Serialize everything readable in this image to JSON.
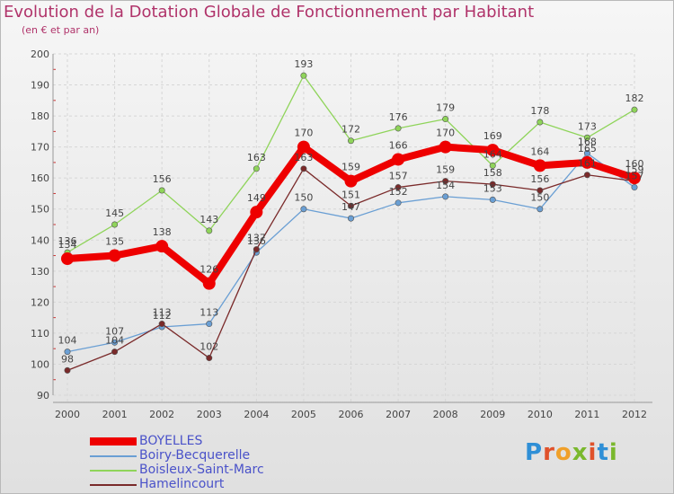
{
  "title": "Evolution de la Dotation Globale de Fonctionnement par Habitant",
  "subtitle": "(en € et par an)",
  "logo": {
    "text": "Proxiti",
    "letter_colors": [
      "#2f8fd6",
      "#e0522b",
      "#f0a02a",
      "#7ab82d",
      "#e0522b",
      "#2f8fd6",
      "#7ab82d"
    ]
  },
  "chart_data": {
    "type": "line",
    "x": [
      "2000",
      "2001",
      "2002",
      "2003",
      "2004",
      "2005",
      "2006",
      "2007",
      "2008",
      "2009",
      "2010",
      "2011",
      "2012"
    ],
    "ylim": [
      90,
      200
    ],
    "yticks": [
      "90",
      "100",
      "110",
      "120",
      "130",
      "140",
      "150",
      "160",
      "170",
      "180",
      "190",
      "200"
    ],
    "grid": true,
    "legend_position": "bottom-left",
    "series": [
      {
        "name": "BOYELLES",
        "color": "#ee0000",
        "emphasis": true,
        "values": [
          134,
          135,
          138,
          126,
          149,
          170,
          159,
          166,
          170,
          169,
          164,
          165,
          160
        ]
      },
      {
        "name": "Boiry-Becquerelle",
        "color": "#6a9fd4",
        "emphasis": false,
        "values": [
          104,
          107,
          112,
          113,
          136,
          150,
          147,
          152,
          154,
          153,
          150,
          168,
          157
        ]
      },
      {
        "name": "Boisleux-Saint-Marc",
        "color": "#8fd45a",
        "emphasis": false,
        "values": [
          136,
          145,
          156,
          143,
          163,
          193,
          172,
          176,
          179,
          164,
          178,
          173,
          182
        ]
      },
      {
        "name": "Hamelincourt",
        "color": "#7a2a2a",
        "emphasis": false,
        "values": [
          98,
          104,
          113,
          102,
          137,
          163,
          151,
          157,
          159,
          158,
          156,
          161,
          159
        ]
      }
    ]
  }
}
